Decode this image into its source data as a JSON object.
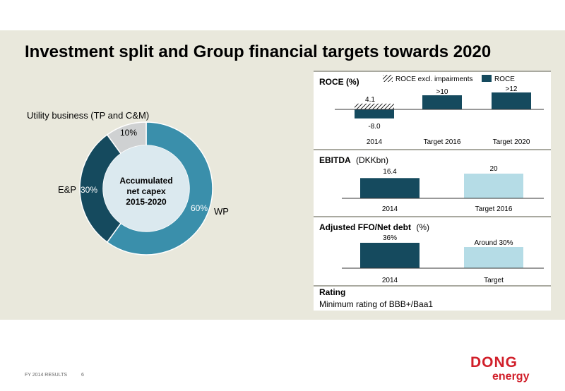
{
  "page": {
    "title": "Investment split and Group financial targets towards 2020",
    "footer_label": "FY 2014 RESULTS",
    "page_number": "6",
    "logo_top": "DONG",
    "logo_bottom": "energy"
  },
  "colors": {
    "dark_teal": "#154a5e",
    "mid_teal": "#3a8fab",
    "light_blue": "#b5dce6",
    "grey": "#cfd1d2",
    "inner_circle": "#dbe9ef",
    "brand_red": "#d11f2a"
  },
  "chart_data": [
    {
      "type": "pie",
      "donut": true,
      "center_label": [
        "Accumulated",
        "net capex",
        "2015-2020"
      ],
      "slices": [
        {
          "label": "WP",
          "value": 60,
          "value_label": "60%",
          "color": "#3a8fab"
        },
        {
          "label": "E&P",
          "value": 30,
          "value_label": "30%",
          "color": "#154a5e"
        },
        {
          "label": "Utility business (TP and C&M)",
          "value": 10,
          "value_label": "10%",
          "color": "#cfd1d2"
        }
      ]
    },
    {
      "type": "bar",
      "title": "ROCE (%)",
      "legend": [
        "ROCE excl. impairments",
        "ROCE"
      ],
      "legend_position": "top",
      "categories": [
        "2014",
        "Target 2016",
        "Target 2020"
      ],
      "series": [
        {
          "name": "ROCE excl. impairments",
          "values": [
            4.1,
            null,
            null
          ],
          "labels": [
            "4.1",
            "",
            ""
          ],
          "pattern": "hatched"
        },
        {
          "name": "ROCE",
          "values": [
            -8.0,
            10,
            12
          ],
          "labels": [
            "-8.0",
            ">10",
            ">12"
          ],
          "color": "#154a5e"
        }
      ]
    },
    {
      "type": "bar",
      "title": "EBITDA",
      "title_suffix": "(DKKbn)",
      "categories": [
        "2014",
        "Target 2016"
      ],
      "values": [
        16.4,
        20
      ],
      "value_labels": [
        "16.4",
        "20"
      ],
      "colors": [
        "#154a5e",
        "#b5dce6"
      ]
    },
    {
      "type": "bar",
      "title": "Adjusted FFO/Net debt",
      "title_suffix": "(%)",
      "categories": [
        "2014",
        "Target"
      ],
      "values": [
        36,
        30
      ],
      "value_labels": [
        "36%",
        "Around 30%"
      ],
      "colors": [
        "#154a5e",
        "#b5dce6"
      ]
    }
  ],
  "rating": {
    "title": "Rating",
    "text": "Minimum rating of BBB+/Baa1"
  }
}
